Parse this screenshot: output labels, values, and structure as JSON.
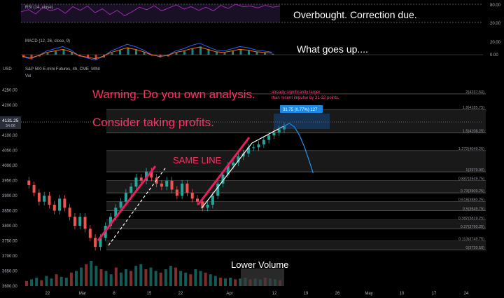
{
  "rsi": {
    "label": "RSI (14, close)",
    "axis": [
      "80.00",
      "20.00"
    ],
    "note": "Overbought. Correction due."
  },
  "macd": {
    "label": "MACD (12, 26, close, 9)",
    "axis": [
      "20.00",
      "0.00"
    ],
    "note": "What goes up...."
  },
  "main": {
    "symbol": "S&P 500 E-mini Futures, 4h, CME_MINI",
    "vol_label": "Vol",
    "currency": "USD",
    "price_tag": {
      "price": "4131.25",
      "countdown": "34:06"
    },
    "warning1": "Warning. Do you own analysis.",
    "warning2": "Consider taking profits.",
    "same_line": "SAME LINE",
    "lower_volume": "Lower Volume",
    "impulse_note_1": "already significantly larger",
    "impulse_note_2": "than recent impulse by 31-32 points.",
    "measure_label": "31.75 (0.77%) 127"
  },
  "chart_data": {
    "type": "candlestick",
    "title": "S&P 500 E-mini Futures, 4h, CME_MINI",
    "y_ticks": [
      "4250.00",
      "4200.00",
      "4150.00",
      "4100.00",
      "4050.00",
      "4000.00",
      "3950.00",
      "3900.00",
      "3850.00",
      "3800.00",
      "3750.00",
      "3700.00",
      "3650.00",
      "3600.00"
    ],
    "ylim": [
      3600,
      4270
    ],
    "x_ticks": [
      "22",
      "Mar",
      "8",
      "15",
      "22",
      "Apr",
      "12",
      "19",
      "26",
      "May",
      "10",
      "17",
      "24"
    ],
    "fib_levels": [
      {
        "label": "2(4237.50)",
        "value": 4237.5
      },
      {
        "label": "1.8(4185.75)",
        "value": 4185.75
      },
      {
        "label": "1.5(4108.25)",
        "value": 4108.25
      },
      {
        "label": "1.272(4049.25)",
        "value": 4049.25
      },
      {
        "label": "1(3979.00)",
        "value": 3979
      },
      {
        "label": "0.887(3949.75)",
        "value": 3949.75
      },
      {
        "label": "0.73(3909.25)",
        "value": 3909.25
      },
      {
        "label": "0.618(3880.25)",
        "value": 3880.25
      },
      {
        "label": "0.5(3849.75)",
        "value": 3849.75
      },
      {
        "label": "0.382(3819.25)",
        "value": 3819.25
      },
      {
        "label": "0.27(3790.25)",
        "value": 3790.25
      },
      {
        "label": "0.113(3749.75)",
        "value": 3749.75
      },
      {
        "label": "0(3720.50)",
        "value": 3720.5
      }
    ],
    "price_path": [
      [
        0,
        3950
      ],
      [
        6,
        3935
      ],
      [
        12,
        3910
      ],
      [
        18,
        3880
      ],
      [
        24,
        3900
      ],
      [
        30,
        3870
      ],
      [
        36,
        3850
      ],
      [
        42,
        3890
      ],
      [
        48,
        3860
      ],
      [
        54,
        3830
      ],
      [
        60,
        3800
      ],
      [
        66,
        3830
      ],
      [
        72,
        3790
      ],
      [
        78,
        3760
      ],
      [
        84,
        3730
      ],
      [
        90,
        3760
      ],
      [
        96,
        3800
      ],
      [
        102,
        3830
      ],
      [
        108,
        3860
      ],
      [
        114,
        3880
      ],
      [
        120,
        3910
      ],
      [
        126,
        3930
      ],
      [
        132,
        3960
      ],
      [
        138,
        3950
      ],
      [
        144,
        3980
      ],
      [
        150,
        3960
      ],
      [
        156,
        3940
      ],
      [
        162,
        3930
      ],
      [
        168,
        3950
      ],
      [
        174,
        3920
      ],
      [
        180,
        3900
      ],
      [
        186,
        3940
      ],
      [
        192,
        3910
      ],
      [
        198,
        3890
      ],
      [
        204,
        3880
      ],
      [
        210,
        3860
      ],
      [
        216,
        3870
      ],
      [
        222,
        3900
      ],
      [
        228,
        3940
      ],
      [
        234,
        3970
      ],
      [
        240,
        4000
      ],
      [
        246,
        4010
      ],
      [
        252,
        4030
      ],
      [
        258,
        4040
      ],
      [
        264,
        4060
      ],
      [
        270,
        4060
      ],
      [
        276,
        4070
      ],
      [
        282,
        4085
      ],
      [
        288,
        4100
      ],
      [
        294,
        4110
      ],
      [
        300,
        4120
      ],
      [
        306,
        4131
      ]
    ],
    "volume": [
      6,
      8,
      10,
      7,
      12,
      9,
      14,
      11,
      10,
      16,
      18,
      22,
      26,
      30,
      24,
      20,
      18,
      14,
      22,
      16,
      20,
      18,
      24,
      26,
      20,
      22,
      18,
      16,
      20,
      24,
      22,
      18,
      16,
      14,
      20,
      18,
      16,
      14,
      12,
      10,
      9,
      10,
      8,
      9,
      10,
      8,
      9,
      8,
      10,
      9,
      8,
      7
    ],
    "rsi_path": [
      55,
      62,
      48,
      70,
      58,
      66,
      50,
      72,
      60,
      74,
      52,
      65,
      46,
      60,
      42,
      55,
      70,
      62,
      75,
      58,
      68,
      78,
      64,
      72,
      60,
      70,
      58,
      76,
      66,
      80,
      72,
      74,
      68,
      76,
      70,
      74
    ],
    "macd_hist": [
      -3,
      -5,
      -2,
      2,
      4,
      6,
      3,
      -2,
      -4,
      -6,
      -3,
      2,
      5,
      8,
      6,
      3,
      -1,
      -3,
      -2,
      2,
      4,
      7,
      9,
      6,
      3,
      2,
      4,
      6,
      5,
      3,
      2,
      1
    ],
    "projection": [
      [
        306,
        4131
      ],
      [
        312,
        4140
      ],
      [
        318,
        4128
      ],
      [
        324,
        4100
      ],
      [
        330,
        4060
      ],
      [
        336,
        4010
      ],
      [
        340,
        3975
      ]
    ]
  }
}
